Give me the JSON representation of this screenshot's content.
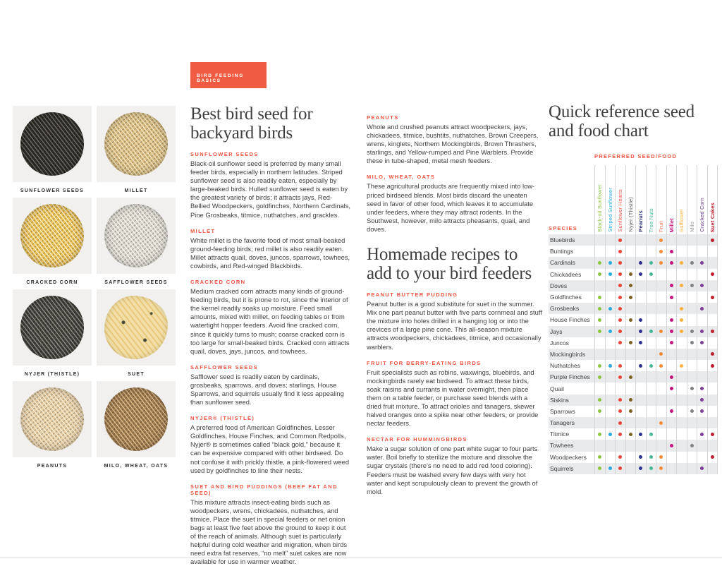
{
  "badge": {
    "label": "BIRD FEEDING BASICS",
    "bg_color": "#f05b43"
  },
  "colors": {
    "accent": "#ee5340",
    "body_text": "#414042",
    "title_text": "#3e3e40",
    "row_stripe": "#e9eaec",
    "grid_line": "#d5d6d8",
    "card_bg": "#f1f0ee"
  },
  "seed_gallery": {
    "items": [
      {
        "label": "SUNFLOWER SEEDS",
        "base": "#2c2b27",
        "speck": "#6b675c"
      },
      {
        "label": "MILLET",
        "base": "#d9bc80",
        "speck": "#f2e3bd"
      },
      {
        "label": "CRACKED CORN",
        "base": "#ecc155",
        "speck": "#f7e9c0"
      },
      {
        "label": "SAFFLOWER SEEDS",
        "base": "#d8d5ca",
        "speck": "#f4f3ee"
      },
      {
        "label": "NYJER (THISTLE)",
        "base": "#403f3a",
        "speck": "#8a887e"
      },
      {
        "label": "SUET",
        "base": "#f2dfa8",
        "speck": "#e7c87a",
        "shape": "disc"
      },
      {
        "label": "PEANUTS",
        "base": "#e6cda3",
        "speck": "#f6ead1"
      },
      {
        "label": "MILO, WHEAT, OATS",
        "base": "#a07b4f",
        "speck": "#d9b98a"
      }
    ]
  },
  "column_one": {
    "title_lines": [
      "Best bird seed for",
      "backyard birds"
    ],
    "sections": [
      {
        "heading": "SUNFLOWER SEEDS",
        "body": "Black-oil sunflower seed is preferred by many small feeder birds, especially in northern latitudes. Striped sunflower seed is also readily eaten, especially by large-beaked birds. Hulled sunflower seed is eaten by the greatest variety of birds; it attracts jays, Red-Bellied Woodpeckers, goldfinches, Northern Cardinals, Pine Grosbeaks, titmice, nuthatches, and grackles."
      },
      {
        "heading": "MILLET",
        "body": "White millet is the favorite food of most small-beaked ground-feeding birds; red millet is also readily eaten. Millet attracts quail, doves, juncos, sparrows, towhees, cowbirds, and Red-winged Blackbirds."
      },
      {
        "heading": "CRACKED CORN",
        "body": "Medium cracked corn attracts many kinds of ground-feeding birds, but it is prone to rot, since the interior of the kernel readily soaks up moisture. Feed small amounts, mixed with millet, on feeding tables or from watertight hopper feeders. Avoid fine cracked corn, since it quickly turns to mush; coarse cracked corn is too large for small-beaked birds. Cracked corn attracts quail, doves, jays, juncos, and towhees."
      },
      {
        "heading": "SAFFLOWER SEEDS",
        "body": "Safflower seed is readily eaten by cardinals, grosbeaks, sparrows, and doves; starlings, House Sparrows, and squirrels usually find it less appealing than sunflower seed."
      },
      {
        "heading": "NYJER® (THISTLE)",
        "body": "A preferred food of American Goldfinches, Lesser Goldfinches, House Finches, and Common Redpolls, Nyjer® is sometimes called “black gold,” because it can be expensive compared with other birdseed. Do not confuse it with prickly thistle, a pink-flowered weed used by goldfinches to line their nests."
      },
      {
        "heading": "SUET AND BIRD PUDDINGS (BEEF FAT AND SEED)",
        "body": "This mixture attracts insect-eating birds such as woodpeckers, wrens, chickadees, nuthatches, and titmice. Place the suet in special feeders or net onion bags at least five feet above the ground to keep it out of the reach of animals. Although suet is particularly helpful during cold weather and migration, when birds need extra fat reserves, “no melt” suet cakes are now available for use in warmer weather."
      }
    ]
  },
  "column_two": {
    "sections_top": [
      {
        "heading": "PEANUTS",
        "body": "Whole and crushed peanuts attract woodpeckers, jays, chickadees, titmice, bushtits, nuthatches, Brown Creepers, wrens, kinglets, Northern Mockingbirds, Brown Thrashers, starlings, and Yellow-rumped and Pine Warblers. Provide these in tube-shaped, metal mesh feeders."
      },
      {
        "heading": "MILO, WHEAT, OATS",
        "body": "These agricultural products are frequently mixed into low-priced birdseed blends. Most birds discard the uneaten seed in favor of other food, which leaves it to accumulate under feeders, where they may attract rodents. In the Southwest, however, milo attracts pheasants, quail, and doves."
      }
    ],
    "title_lines": [
      "Homemade recipes to",
      "add to your bird feeders"
    ],
    "sections_bottom": [
      {
        "heading": "PEANUT BUTTER PUDDING",
        "body": "Peanut butter is a good substitute for suet in the summer. Mix one part peanut butter with five parts cornmeal and stuff the mixture into holes drilled in a hanging log or into the crevices of a large pine cone. This all-season mixture attracts woodpeckers, chickadees, titmice, and occasionally warblers."
      },
      {
        "heading": "FRUIT FOR BERRY-EATING BIRDS",
        "body": "Fruit specialists such as robins, waxwings, bluebirds, and mockingbirds rarely eat birdseed. To attract these birds, soak raisins and currants in water overnight, then place them on a table feeder, or purchase seed blends with a dried fruit mixture. To attract orioles and tanagers, skewer halved oranges onto a spike near other feeders, or provide nectar feeders."
      },
      {
        "heading": "NECTAR FOR HUMMINGBIRDS",
        "body": "Make a sugar solution of one part white sugar to four parts water. Boil briefly to sterilize the mixture and dissolve the sugar crystals (there’s no need to add red food coloring). Feeders must be washed every few days with very hot water and kept scrupulously clean to prevent the growth of mold."
      }
    ]
  },
  "chart": {
    "title_lines": [
      "Quick reference seed",
      "and food chart"
    ],
    "header_label": "PREFERRED SEED/FOOD",
    "species_label": "SPECIES",
    "columns": [
      {
        "label": "Black-oil Sunflower",
        "color": "#8dc63f",
        "label_color": "#8dc63f",
        "bold": false
      },
      {
        "label": "Striped Sunflower",
        "color": "#29abe2",
        "label_color": "#29abe2",
        "bold": false
      },
      {
        "label": "Sunflower Hearts",
        "color": "#ee4438",
        "label_color": "#f1584a",
        "bold": false
      },
      {
        "label": "Nyjer (Thistle)",
        "color": "#7d6022",
        "label_color": "#58595b",
        "bold": false
      },
      {
        "label": "Peanuts",
        "color": "#2e3192",
        "label_color": "#2e3080",
        "bold": true
      },
      {
        "label": "Tree Nuts",
        "color": "#45b797",
        "label_color": "#45b797",
        "bold": false
      },
      {
        "label": "Fruit",
        "color": "#f68b33",
        "label_color": "#f26849",
        "bold": false
      },
      {
        "label": "Millet",
        "color": "#c4157f",
        "label_color": "#c4157f",
        "bold": true
      },
      {
        "label": "Safflower",
        "color": "#fbb040",
        "label_color": "#fbb040",
        "bold": false
      },
      {
        "label": "Milo",
        "color": "#808386",
        "label_color": "#97999c",
        "bold": false
      },
      {
        "label": "Cracked Corn",
        "color": "#7e3f98",
        "label_color": "#693a8e",
        "bold": false
      },
      {
        "label": "Suet Cakes",
        "color": "#be1e2d",
        "label_color": "#be1e2d",
        "bold": true
      }
    ],
    "rows": [
      {
        "species": "Bluebirds",
        "marks": [
          3,
          7,
          12
        ]
      },
      {
        "species": "Buntings",
        "marks": [
          3,
          7,
          8
        ]
      },
      {
        "species": "Cardinals",
        "marks": [
          1,
          2,
          3,
          5,
          6,
          7,
          8,
          9,
          10,
          11
        ]
      },
      {
        "species": "Chickadees",
        "marks": [
          1,
          2,
          3,
          4,
          5,
          6,
          12
        ]
      },
      {
        "species": "Doves",
        "marks": [
          3,
          4,
          8,
          9,
          10,
          11
        ]
      },
      {
        "species": "Goldfinches",
        "marks": [
          1,
          3,
          4,
          8,
          12
        ]
      },
      {
        "species": "Grosbeaks",
        "marks": [
          1,
          2,
          3,
          9,
          11
        ]
      },
      {
        "species": "House Finches",
        "marks": [
          1,
          3,
          4,
          5,
          8,
          9
        ]
      },
      {
        "species": "Jays",
        "marks": [
          1,
          2,
          3,
          5,
          6,
          7,
          8,
          9,
          10,
          11,
          12
        ]
      },
      {
        "species": "Juncos",
        "marks": [
          3,
          4,
          5,
          8,
          10,
          11
        ]
      },
      {
        "species": "Mockingbirds",
        "marks": [
          7,
          12
        ]
      },
      {
        "species": "Nuthatches",
        "marks": [
          1,
          2,
          3,
          5,
          6,
          7,
          9,
          12
        ]
      },
      {
        "species": "Purple Finches",
        "marks": [
          1,
          3,
          4,
          8
        ]
      },
      {
        "species": "Quail",
        "marks": [
          8,
          10,
          11
        ]
      },
      {
        "species": "Siskins",
        "marks": [
          1,
          3,
          4,
          11
        ]
      },
      {
        "species": "Sparrows",
        "marks": [
          1,
          3,
          4,
          8,
          10,
          11
        ]
      },
      {
        "species": "Tanagers",
        "marks": [
          3,
          7
        ]
      },
      {
        "species": "Titmice",
        "marks": [
          1,
          2,
          3,
          4,
          5,
          6,
          11,
          12
        ]
      },
      {
        "species": "Towhees",
        "marks": [
          8,
          10
        ]
      },
      {
        "species": "Woodpeckers",
        "marks": [
          1,
          3,
          5,
          6,
          7,
          12
        ]
      },
      {
        "species": "Squirrels",
        "marks": [
          1,
          2,
          3,
          5,
          6,
          7,
          11
        ]
      }
    ]
  }
}
